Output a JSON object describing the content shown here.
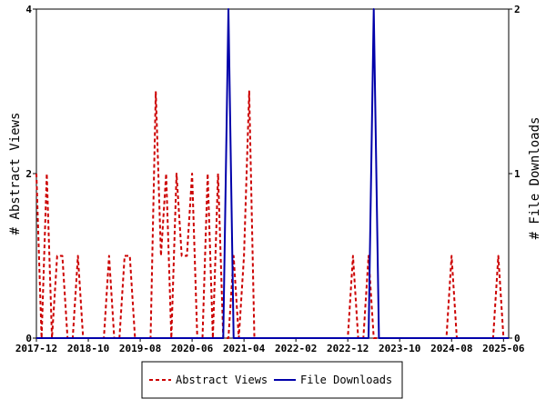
{
  "chart_data": {
    "type": "line",
    "title": "",
    "x_ticks": [
      "2017-12",
      "2018-10",
      "2019-08",
      "2020-06",
      "2021-04",
      "2022-02",
      "2022-12",
      "2023-10",
      "2024-08",
      "2025-06"
    ],
    "left_axis": {
      "label": "# Abstract Views",
      "ylim": [
        0,
        4
      ],
      "ticks": [
        "0",
        "2",
        "4"
      ]
    },
    "right_axis": {
      "label": "# File Downloads",
      "ylim": [
        0,
        2
      ],
      "ticks": [
        "0",
        "1",
        "2"
      ]
    },
    "x_months": [
      "2017-12",
      "2018-01",
      "2018-02",
      "2018-03",
      "2018-04",
      "2018-05",
      "2018-06",
      "2018-07",
      "2018-08",
      "2018-09",
      "2018-10",
      "2018-11",
      "2018-12",
      "2019-01",
      "2019-02",
      "2019-03",
      "2019-04",
      "2019-05",
      "2019-06",
      "2019-07",
      "2019-08",
      "2019-09",
      "2019-10",
      "2019-11",
      "2019-12",
      "2020-01",
      "2020-02",
      "2020-03",
      "2020-04",
      "2020-05",
      "2020-06",
      "2020-07",
      "2020-08",
      "2020-09",
      "2020-10",
      "2020-11",
      "2020-12",
      "2021-01",
      "2021-02",
      "2021-03",
      "2021-04",
      "2021-05",
      "2021-06",
      "2021-07",
      "2021-08",
      "2021-09",
      "2021-10",
      "2021-11",
      "2021-12",
      "2022-01",
      "2022-02",
      "2022-03",
      "2022-04",
      "2022-05",
      "2022-06",
      "2022-07",
      "2022-08",
      "2022-09",
      "2022-10",
      "2022-11",
      "2022-12",
      "2023-01",
      "2023-02",
      "2023-03",
      "2023-04",
      "2023-05",
      "2023-06",
      "2023-07",
      "2023-08",
      "2023-09",
      "2023-10",
      "2023-11",
      "2023-12",
      "2024-01",
      "2024-02",
      "2024-03",
      "2024-04",
      "2024-05",
      "2024-06",
      "2024-07",
      "2024-08",
      "2024-09",
      "2024-10",
      "2024-11",
      "2024-12",
      "2025-01",
      "2025-02",
      "2025-03",
      "2025-04",
      "2025-05",
      "2025-06",
      "2025-07"
    ],
    "series": [
      {
        "name": "Abstract Views",
        "axis": "left",
        "color": "#cc0000",
        "dash": true,
        "values": [
          2,
          0,
          2,
          0,
          1,
          1,
          0,
          0,
          1,
          0,
          0,
          0,
          0,
          0,
          1,
          0,
          0,
          1,
          1,
          0,
          0,
          0,
          0,
          3,
          1,
          2,
          0,
          2,
          1,
          1,
          2,
          0,
          0,
          2,
          0,
          2,
          0,
          0,
          1,
          0,
          1,
          3,
          0,
          0,
          0,
          0,
          0,
          0,
          0,
          0,
          0,
          0,
          0,
          0,
          0,
          0,
          0,
          0,
          0,
          0,
          0,
          1,
          0,
          0,
          1,
          0,
          0,
          0,
          0,
          0,
          0,
          0,
          0,
          0,
          0,
          0,
          0,
          0,
          0,
          0,
          1,
          0,
          0,
          0,
          0,
          0,
          0,
          0,
          0,
          1,
          0,
          0
        ]
      },
      {
        "name": "File Downloads",
        "axis": "right",
        "color": "#0000aa",
        "dash": false,
        "values": [
          0,
          0,
          0,
          0,
          0,
          0,
          0,
          0,
          0,
          0,
          0,
          0,
          0,
          0,
          0,
          0,
          0,
          0,
          0,
          0,
          0,
          0,
          0,
          0,
          0,
          0,
          0,
          0,
          0,
          0,
          0,
          0,
          0,
          0,
          0,
          0,
          0,
          2,
          0,
          0,
          0,
          0,
          0,
          0,
          0,
          0,
          0,
          0,
          0,
          0,
          0,
          0,
          0,
          0,
          0,
          0,
          0,
          0,
          0,
          0,
          0,
          0,
          0,
          0,
          0,
          2,
          0,
          0,
          0,
          0,
          0,
          0,
          0,
          0,
          0,
          0,
          0,
          0,
          0,
          0,
          0,
          0,
          0,
          0,
          0,
          0,
          0,
          0,
          0,
          0,
          0,
          0
        ]
      }
    ],
    "legend": {
      "position": "bottom",
      "items": [
        "Abstract Views",
        "File Downloads"
      ]
    }
  }
}
